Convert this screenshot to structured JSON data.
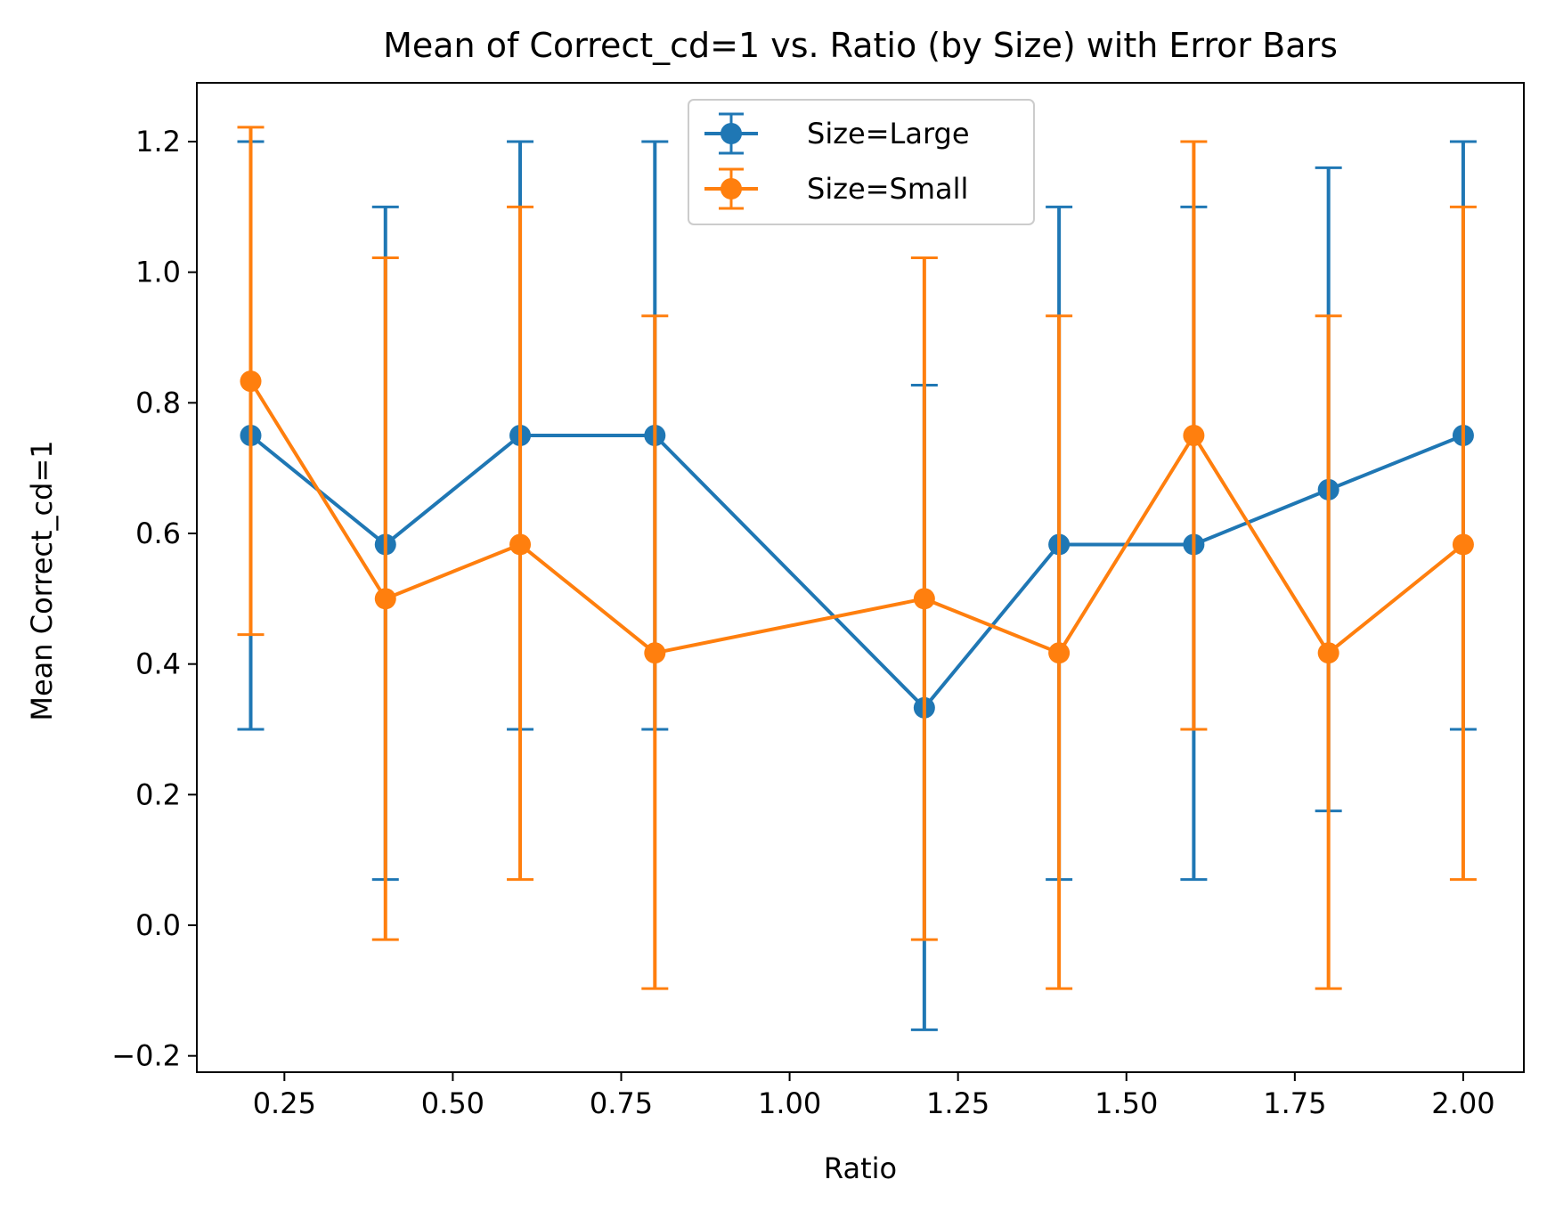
{
  "chart_data": {
    "type": "line",
    "title": "Mean of Correct_cd=1 vs. Ratio (by Size) with Error Bars",
    "xlabel": "Ratio",
    "ylabel": "Mean Correct_cd=1",
    "xlim": [
      0.12,
      2.09
    ],
    "ylim": [
      -0.225,
      1.29
    ],
    "xticks": [
      0.25,
      0.5,
      0.75,
      1.0,
      1.25,
      1.5,
      1.75,
      2.0
    ],
    "xtick_labels": [
      "0.25",
      "0.50",
      "0.75",
      "1.00",
      "1.25",
      "1.50",
      "1.75",
      "2.00"
    ],
    "yticks": [
      -0.2,
      0.0,
      0.2,
      0.4,
      0.6,
      0.8,
      1.0,
      1.2
    ],
    "ytick_labels": [
      "−0.2",
      "0.0",
      "0.2",
      "0.4",
      "0.6",
      "0.8",
      "1.0",
      "1.2"
    ],
    "grid": false,
    "legend_position": "upper-center",
    "series": [
      {
        "name": "Size=Large",
        "color": "#1f77b4",
        "points": [
          {
            "x": 0.2,
            "y": 0.75,
            "lo": 0.3,
            "hi": 1.2
          },
          {
            "x": 0.4,
            "y": 0.583,
            "lo": 0.07,
            "hi": 1.1
          },
          {
            "x": 0.6,
            "y": 0.75,
            "lo": 0.3,
            "hi": 1.2
          },
          {
            "x": 0.8,
            "y": 0.75,
            "lo": 0.3,
            "hi": 1.2
          },
          {
            "x": 1.2,
            "y": 0.333,
            "lo": -0.16,
            "hi": 0.827
          },
          {
            "x": 1.4,
            "y": 0.583,
            "lo": 0.07,
            "hi": 1.1
          },
          {
            "x": 1.6,
            "y": 0.583,
            "lo": 0.07,
            "hi": 1.1
          },
          {
            "x": 1.8,
            "y": 0.667,
            "lo": 0.175,
            "hi": 1.16
          },
          {
            "x": 2.0,
            "y": 0.75,
            "lo": 0.3,
            "hi": 1.2
          }
        ]
      },
      {
        "name": "Size=Small",
        "color": "#ff7f0e",
        "points": [
          {
            "x": 0.2,
            "y": 0.833,
            "lo": 0.445,
            "hi": 1.222
          },
          {
            "x": 0.4,
            "y": 0.5,
            "lo": -0.022,
            "hi": 1.022
          },
          {
            "x": 0.6,
            "y": 0.583,
            "lo": 0.07,
            "hi": 1.1
          },
          {
            "x": 0.8,
            "y": 0.417,
            "lo": -0.097,
            "hi": 0.933
          },
          {
            "x": 1.2,
            "y": 0.5,
            "lo": -0.022,
            "hi": 1.022
          },
          {
            "x": 1.4,
            "y": 0.417,
            "lo": -0.097,
            "hi": 0.933
          },
          {
            "x": 1.6,
            "y": 0.75,
            "lo": 0.3,
            "hi": 1.2
          },
          {
            "x": 1.8,
            "y": 0.417,
            "lo": -0.097,
            "hi": 0.933
          },
          {
            "x": 2.0,
            "y": 0.583,
            "lo": 0.07,
            "hi": 1.1
          }
        ]
      }
    ]
  }
}
